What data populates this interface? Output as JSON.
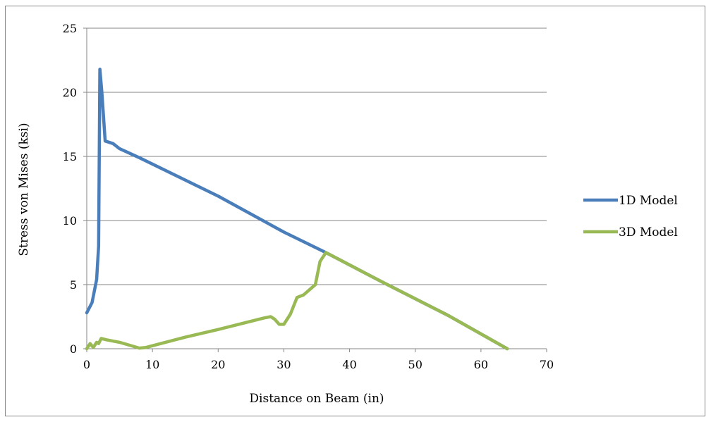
{
  "chart_data": {
    "type": "line",
    "title": "",
    "xlabel": "Distance on Beam (in)",
    "ylabel": "Stress von Mises (ksi)",
    "xlim": [
      0,
      70
    ],
    "ylim": [
      0,
      25
    ],
    "xticks": [
      0,
      10,
      20,
      30,
      40,
      50,
      60,
      70
    ],
    "yticks": [
      0,
      5,
      10,
      15,
      20,
      25
    ],
    "grid": "horizontal",
    "legend_position": "right",
    "series": [
      {
        "name": "1D Model",
        "color": "#4a7ebb",
        "points": [
          [
            0,
            2.8
          ],
          [
            0.8,
            3.6
          ],
          [
            1.5,
            5.4
          ],
          [
            1.8,
            8
          ],
          [
            2.0,
            21.8
          ],
          [
            2.3,
            20
          ],
          [
            2.8,
            16.2
          ],
          [
            4.0,
            16.0
          ],
          [
            5.0,
            15.6
          ],
          [
            8.0,
            14.9
          ],
          [
            20,
            11.9
          ],
          [
            30,
            9.1
          ],
          [
            36.4,
            7.5
          ],
          [
            45,
            5.2
          ],
          [
            55,
            2.6
          ],
          [
            64,
            0
          ]
        ]
      },
      {
        "name": "3D Model",
        "color": "#98b954",
        "points": [
          [
            0,
            0
          ],
          [
            0.5,
            0.4
          ],
          [
            1.0,
            0.1
          ],
          [
            1.5,
            0.5
          ],
          [
            1.8,
            0.4
          ],
          [
            2.2,
            0.8
          ],
          [
            3.0,
            0.7
          ],
          [
            5.0,
            0.5
          ],
          [
            8.0,
            0.05
          ],
          [
            9.0,
            0.1
          ],
          [
            15,
            0.9
          ],
          [
            20,
            1.5
          ],
          [
            27,
            2.4
          ],
          [
            28,
            2.5
          ],
          [
            28.6,
            2.3
          ],
          [
            29.3,
            1.9
          ],
          [
            30.0,
            1.9
          ],
          [
            31.0,
            2.7
          ],
          [
            32.0,
            4.0
          ],
          [
            33.0,
            4.2
          ],
          [
            34.8,
            5.0
          ],
          [
            35.5,
            6.8
          ],
          [
            36.4,
            7.5
          ],
          [
            45,
            5.2
          ],
          [
            55,
            2.6
          ],
          [
            64,
            0
          ]
        ]
      }
    ]
  }
}
